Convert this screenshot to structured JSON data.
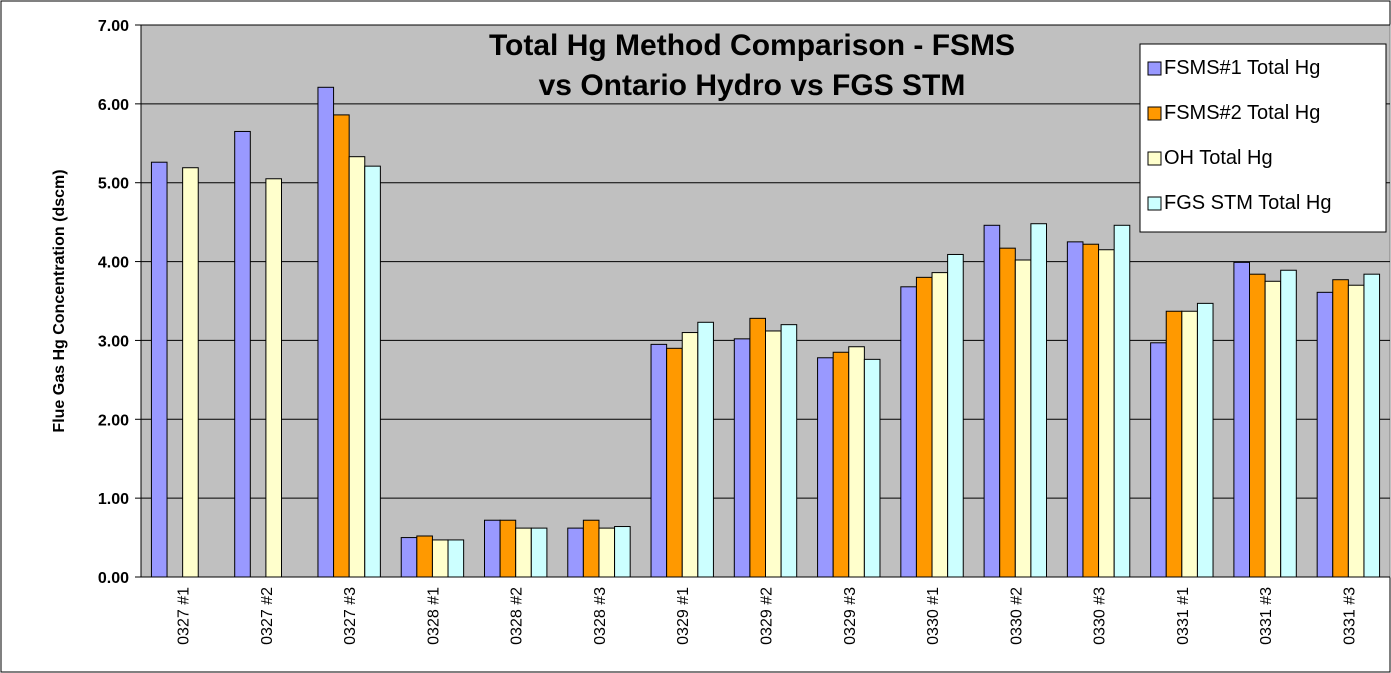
{
  "chart_data": {
    "type": "bar",
    "title": [
      "Total Hg Method Comparison - FSMS",
      "vs Ontario Hydro vs FGS STM"
    ],
    "y_label": "Flue Gas Hg Concentration (dscm)",
    "categories": [
      "0327 #1",
      "0327 #2",
      "0327 #3",
      "0328 #1",
      "0328 #2",
      "0328 #3",
      "0329 #1",
      "0329 #2",
      "0329 #3",
      "0330 #1",
      "0330 #2",
      "0330 #3",
      "0331 #1",
      "0331 #3",
      "0331 #3"
    ],
    "series": [
      {
        "name": "FSMS#1 Total Hg",
        "color": "#9999ff",
        "values": [
          5.26,
          5.65,
          6.21,
          0.5,
          0.72,
          0.62,
          2.95,
          3.02,
          2.78,
          3.68,
          4.46,
          4.25,
          2.97,
          3.99,
          3.61
        ]
      },
      {
        "name": "FSMS#2 Total Hg",
        "color": "#ff9900",
        "values": [
          null,
          null,
          5.86,
          0.52,
          0.72,
          0.72,
          2.9,
          3.28,
          2.85,
          3.8,
          4.17,
          4.22,
          3.37,
          3.84,
          3.77
        ]
      },
      {
        "name": "OH Total Hg",
        "color": "#ffffcc",
        "values": [
          5.19,
          5.05,
          5.33,
          0.47,
          0.62,
          0.62,
          3.1,
          3.12,
          2.92,
          3.86,
          4.02,
          4.15,
          3.37,
          3.75,
          3.7
        ]
      },
      {
        "name": "FGS STM Total Hg",
        "color": "#ccffff",
        "values": [
          null,
          null,
          5.21,
          0.47,
          0.62,
          0.64,
          3.23,
          3.2,
          2.76,
          4.09,
          4.48,
          4.46,
          3.47,
          3.89,
          3.84
        ]
      }
    ],
    "ylim": [
      0,
      7
    ],
    "yticks": [
      {
        "value": 0,
        "label": "0.00"
      },
      {
        "value": 1,
        "label": "1.00"
      },
      {
        "value": 2,
        "label": "2.00"
      },
      {
        "value": 3,
        "label": "3.00"
      },
      {
        "value": 4,
        "label": "4.00"
      },
      {
        "value": 5,
        "label": "5.00"
      },
      {
        "value": 6,
        "label": "6.00"
      },
      {
        "value": 7,
        "label": "7.00"
      }
    ],
    "grid": true,
    "legend": "top-right",
    "background": "#c0c0c0"
  }
}
